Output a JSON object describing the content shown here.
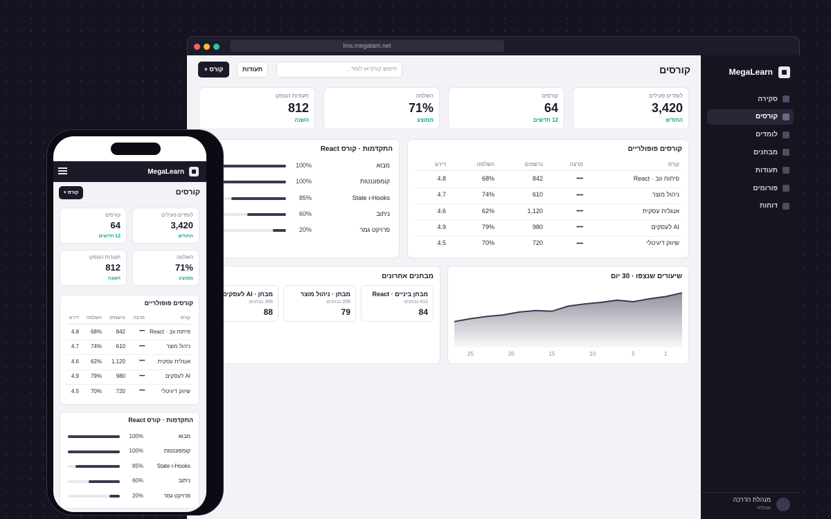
{
  "browser": {
    "url": "lms.megatam.net"
  },
  "sidebar": {
    "brand": "MegaLearn",
    "nav": [
      "סקירה",
      "קורסים",
      "לומדים",
      "מבחנים",
      "תעודות",
      "פורומים",
      "דוחות"
    ],
    "active": 1,
    "user": {
      "name": "מנהלת הדרכה",
      "org": "מכללה"
    }
  },
  "header": {
    "title": "קורסים",
    "search_placeholder": "חיפוש קורס או לומד...",
    "buttons": [
      "תעודות",
      "+ קורס"
    ]
  },
  "kpis": [
    {
      "label": "לומדים פעילים",
      "value": "3,420",
      "note": "החודש"
    },
    {
      "label": "קורסים",
      "value": "64",
      "note": "12 חדשים"
    },
    {
      "label": "השלמה",
      "value": "71%",
      "note": "ממוצע"
    },
    {
      "label": "תעודות הונפקו",
      "value": "812",
      "note": "השנה"
    }
  ],
  "popular": {
    "title": "קורסים פופולריים",
    "columns": [
      "קורס",
      "מרצה",
      "נרשמים",
      "השלמה",
      "דירוג"
    ],
    "rows": [
      [
        "פיתוח ווב · React",
        "•••••",
        "842",
        "68%",
        "4.8"
      ],
      [
        "ניהול מוצר",
        "•••••",
        "610",
        "74%",
        "4.7"
      ],
      [
        "אנגלית עסקית",
        "•••••",
        "1,120",
        "62%",
        "4.6"
      ],
      [
        "AI לעסקים",
        "•••••",
        "980",
        "79%",
        "4.9"
      ],
      [
        "שיווק דיגיטלי",
        "•••••",
        "720",
        "70%",
        "4.5"
      ]
    ]
  },
  "progress": {
    "title": "התקדמות · קורס React",
    "items": [
      {
        "label": "מבוא",
        "value": 100,
        "value_label": "100%"
      },
      {
        "label": "קומפוננטות",
        "value": 100,
        "value_label": "100%"
      },
      {
        "label": "Hooks-ו State",
        "value": 85,
        "value_label": "85%"
      },
      {
        "label": "ניתוב",
        "value": 60,
        "value_label": "60%"
      },
      {
        "label": "פרויקט גמר",
        "value": 20,
        "value_label": "20%"
      }
    ]
  },
  "chart_data": {
    "type": "area",
    "title": "שיעורים שנצפו · 30 יום",
    "x": [
      27,
      25,
      23,
      21,
      19,
      17,
      15,
      13,
      11,
      9,
      7,
      5,
      3,
      1,
      -1
    ],
    "values": [
      35,
      39,
      42,
      44,
      48,
      50,
      49,
      56,
      59,
      61,
      64,
      62,
      66,
      69,
      74
    ],
    "xlim": [
      27,
      -1
    ],
    "xticks": [
      25,
      20,
      15,
      10,
      5,
      1
    ],
    "ylim": [
      0,
      77
    ],
    "color": "#3a3950"
  },
  "exams": {
    "title": "מבחנים אחרונים",
    "items": [
      {
        "name": "מבחן ביניים · React",
        "takers": "412 נבחנים",
        "score": "84"
      },
      {
        "name": "מבחן · ניהול מוצר",
        "takers": "288 נבחנים",
        "score": "79"
      },
      {
        "name": "מבחן · AI לעסקים",
        "takers": "356 נבחנים",
        "score": "88"
      }
    ]
  }
}
